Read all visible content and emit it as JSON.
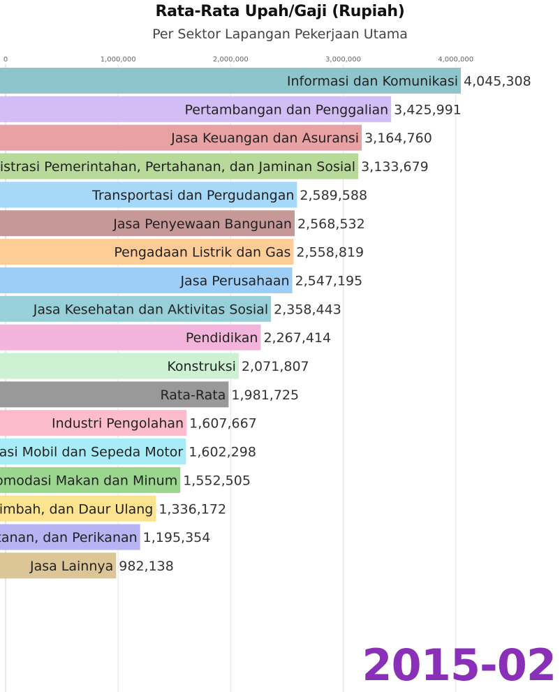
{
  "chart_data": {
    "type": "bar",
    "orientation": "horizontal",
    "title": "Rata-Rata Upah/Gaji (Rupiah)",
    "subtitle": "Per Sektor Lapangan Pekerjaan Utama",
    "period": "2015-02",
    "xlim": [
      0,
      4050000
    ],
    "x_ticks": [
      0,
      1000000,
      2000000,
      3000000,
      4000000
    ],
    "x_tick_labels": [
      "0",
      "1,000,000",
      "2,000,000",
      "3,000,000",
      "4,000,000"
    ],
    "grid": true,
    "bars": [
      {
        "label": "Informasi dan Komunikasi",
        "value": 4045308,
        "value_label": "4,045,308",
        "color": "#8ec4cc"
      },
      {
        "label": "Pertambangan dan Penggalian",
        "value": 3425991,
        "value_label": "3,425,991",
        "color": "#d2bdf4"
      },
      {
        "label": "Jasa Keuangan dan Asuransi",
        "value": 3164760,
        "value_label": "3,164,760",
        "color": "#e8a2a3"
      },
      {
        "label": "Administrasi Pemerintahan, Pertahanan, dan Jaminan Sosial",
        "value": 3133679,
        "value_label": "3,133,679",
        "color": "#b7d99a"
      },
      {
        "label": "Transportasi dan Pergudangan",
        "value": 2589588,
        "value_label": "2,589,588",
        "color": "#a6d8f7"
      },
      {
        "label": "Jasa Penyewaan Bangunan",
        "value": 2568532,
        "value_label": "2,568,532",
        "color": "#c79898"
      },
      {
        "label": "Pengadaan Listrik dan Gas",
        "value": 2558819,
        "value_label": "2,558,819",
        "color": "#fdcc97"
      },
      {
        "label": "Jasa Perusahaan",
        "value": 2547195,
        "value_label": "2,547,195",
        "color": "#9dcef8"
      },
      {
        "label": "Jasa Kesehatan dan Aktivitas Sosial",
        "value": 2358443,
        "value_label": "2,358,443",
        "color": "#98d0da"
      },
      {
        "label": "Pendidikan",
        "value": 2267414,
        "value_label": "2,267,414",
        "color": "#f2b4db"
      },
      {
        "label": "Konstruksi",
        "value": 2071807,
        "value_label": "2,071,807",
        "color": "#cdf2d3"
      },
      {
        "label": "Rata-Rata",
        "value": 1981725,
        "value_label": "1,981,725",
        "color": "#999999"
      },
      {
        "label": "Industri Pengolahan",
        "value": 1607667,
        "value_label": "1,607,667",
        "color": "#fcbccb"
      },
      {
        "label": "Perdagangan Besar dan Eceran; Reparasi Mobil dan Sepeda Motor",
        "value": 1602298,
        "value_label": "1,602,298",
        "color": "#a8ecf7"
      },
      {
        "label": "Penyediaan Akomodasi Makan dan Minum",
        "value": 1552505,
        "value_label": "1,552,505",
        "color": "#9bd68e"
      },
      {
        "label": "Pengadaan Air, Pengelolaan Sampah, Limbah, dan Daur Ulang",
        "value": 1336172,
        "value_label": "1,336,172",
        "color": "#fce38f"
      },
      {
        "label": "Pertanian, Kehutanan, dan Perikanan",
        "value": 1195354,
        "value_label": "1,195,354",
        "color": "#b6b4f2"
      },
      {
        "label": "Jasa Lainnya",
        "value": 982138,
        "value_label": "982,138",
        "color": "#dcc596"
      }
    ]
  }
}
